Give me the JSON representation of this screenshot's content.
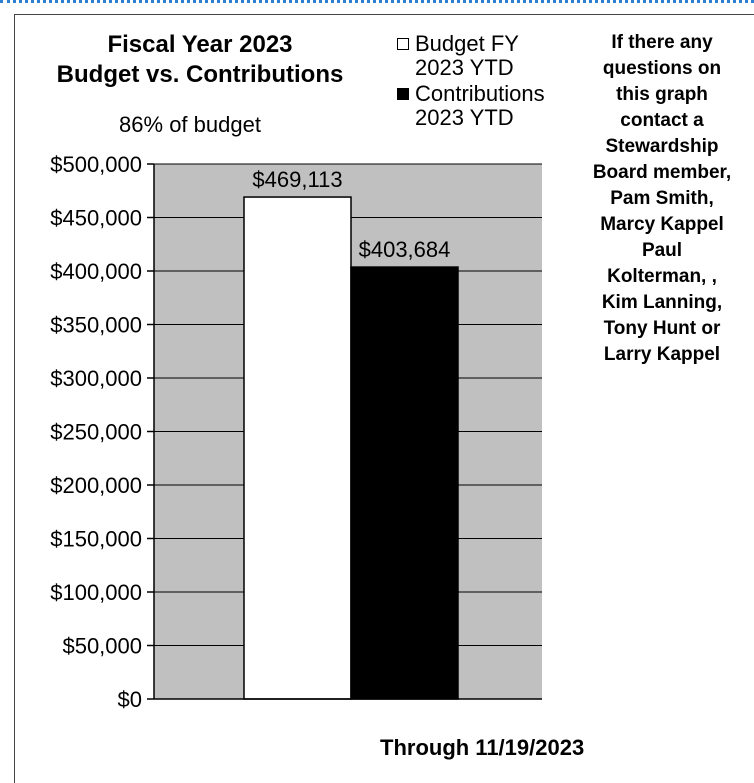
{
  "chart_data": {
    "type": "bar",
    "title_lines": [
      "Fiscal Year 2023",
      "Budget vs. Contributions"
    ],
    "subtitle": "86% of budget",
    "categories": [
      ""
    ],
    "series": [
      {
        "name_lines": [
          "Budget FY",
          "2023 YTD"
        ],
        "values": [
          469113
        ],
        "color": "#ffffff",
        "data_label": "$469,113"
      },
      {
        "name_lines": [
          "Contributions",
          "2023 YTD"
        ],
        "values": [
          403684
        ],
        "color": "#000000",
        "data_label": "$403,684"
      }
    ],
    "ylim": [
      0,
      500000
    ],
    "y_ticks": [
      0,
      50000,
      100000,
      150000,
      200000,
      250000,
      300000,
      350000,
      400000,
      450000,
      500000
    ],
    "y_tick_labels": [
      "$0",
      "$50,000",
      "$100,000",
      "$150,000",
      "$200,000",
      "$250,000",
      "$300,000",
      "$350,000",
      "$400,000",
      "$450,000",
      "$500,000"
    ],
    "grid": true,
    "legend_position": "top-right",
    "plot_background": "#c0c0c0",
    "footer": "Through 11/19/2023"
  },
  "note_lines": [
    "If there any",
    "questions on",
    "this graph",
    "contact a",
    "Stewardship",
    "Board member,",
    "Pam Smith,",
    "Marcy Kappel",
    "Paul",
    "Kolterman, ,",
    "Kim Lanning,",
    "Tony Hunt  or",
    "Larry Kappel"
  ]
}
